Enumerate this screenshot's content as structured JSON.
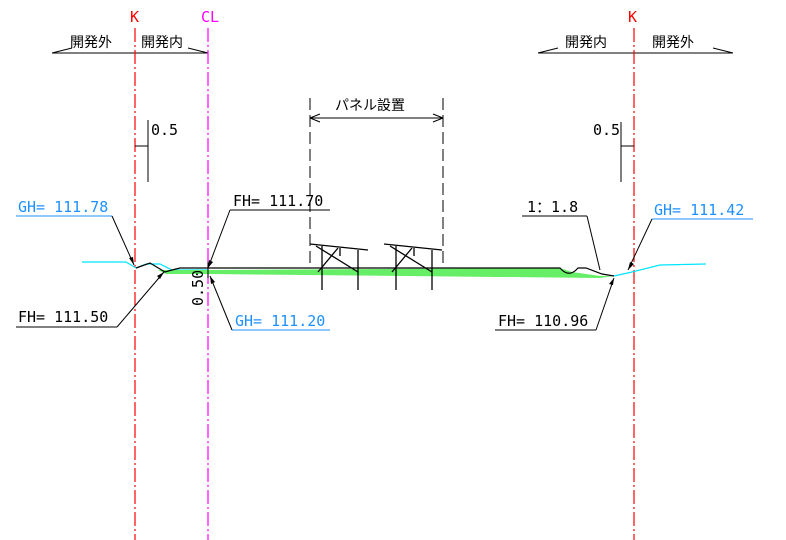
{
  "markers": {
    "left_k": "K",
    "center_cl": "CL",
    "right_k": "K"
  },
  "zones": {
    "outside_left": "開発外",
    "inside_left": "開発内",
    "inside_right": "開発内",
    "outside_right": "開発外"
  },
  "panel_label": "パネル設置",
  "offsets": {
    "left": "0.5",
    "right": "0.5"
  },
  "elevations": {
    "gh_left": "GH= 111.78",
    "fh_center": "FH= 111.70",
    "fh_left": "FH= 111.50",
    "depth": "0.50",
    "gh_center": "GH= 111.20",
    "slope": "1：1.8",
    "gh_right": "GH= 111.42",
    "fh_right": "FH= 110.96"
  },
  "colors": {
    "k_line": "#ff0000",
    "cl_line": "#ff00ff",
    "ground_line": "#00e5ff",
    "fill": "#66ee66",
    "gh_text": "#1e90ff"
  }
}
